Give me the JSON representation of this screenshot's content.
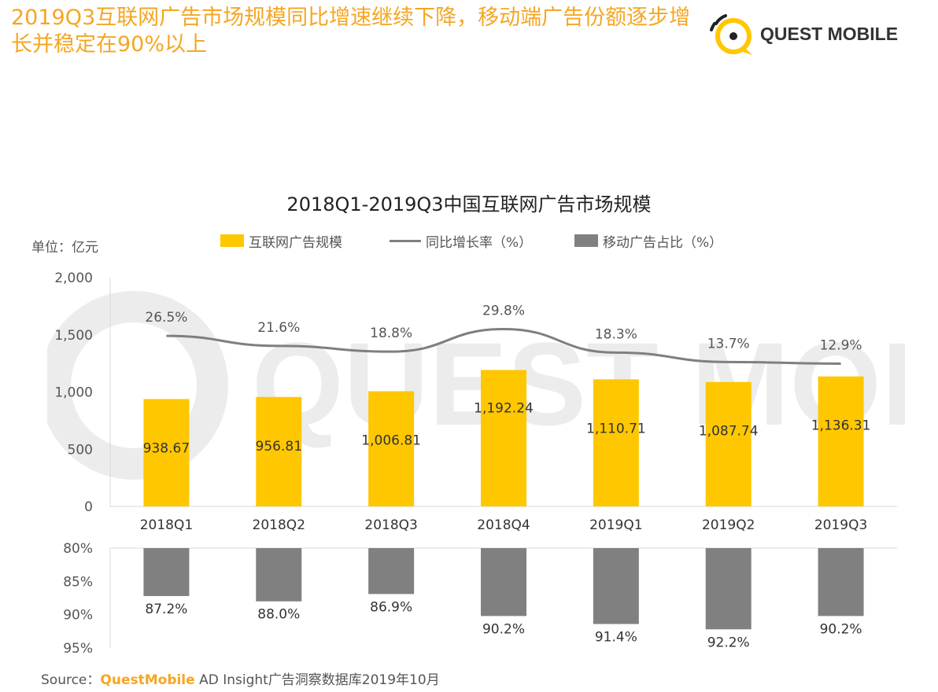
{
  "headline": "2019Q3互联网广告市场规模同比增速继续下降，移动端广告份额逐步增长并稳定在90%以上",
  "logo": {
    "text": "QUEST MOBILE",
    "icon": "quest-mobile-logo-icon"
  },
  "colors": {
    "accent": "#f5a623",
    "bar": "#ffc700",
    "line": "#7f7f7f",
    "mobile_bar": "#808080"
  },
  "source": {
    "prefix": "Source：",
    "brand": "QuestMobile",
    "rest": " AD Insight广告洞察数据库2019年10月"
  },
  "chart_data": {
    "type": "bar",
    "title": "2018Q1-2019Q3中国互联网广告市场规模",
    "unit_label": "单位：亿元",
    "categories": [
      "2018Q1",
      "2018Q2",
      "2018Q3",
      "2018Q4",
      "2019Q1",
      "2019Q2",
      "2019Q3"
    ],
    "legend": [
      "互联网广告规模",
      "同比增长率（%）",
      "移动广告占比（%）"
    ],
    "legend_placement": "top-center",
    "grid": false,
    "top_panel": {
      "ylim": [
        0,
        2000
      ],
      "yticks": [
        "2,000",
        "1,500",
        "1,000",
        "500",
        "0"
      ],
      "ytick_values": [
        2000,
        1500,
        1000,
        500,
        0
      ],
      "series": [
        {
          "name": "互联网广告规模",
          "type": "bar",
          "values": [
            938.67,
            956.81,
            1006.81,
            1192.24,
            1110.71,
            1087.74,
            1136.31
          ],
          "labels": [
            "938.67",
            "956.81",
            "1,006.81",
            "1,192.24",
            "1,110.71",
            "1,087.74",
            "1,136.31"
          ]
        },
        {
          "name": "同比增长率（%）",
          "type": "line",
          "values": [
            26.5,
            21.6,
            18.8,
            29.8,
            18.3,
            13.7,
            12.9
          ],
          "labels": [
            "26.5%",
            "21.6%",
            "18.8%",
            "29.8%",
            "18.3%",
            "13.7%",
            "12.9%"
          ]
        }
      ]
    },
    "bottom_panel": {
      "ylim": [
        80,
        95
      ],
      "yticks": [
        "80%",
        "85%",
        "90%",
        "95%"
      ],
      "ytick_values": [
        80,
        85,
        90,
        95
      ],
      "series": [
        {
          "name": "移动广告占比（%）",
          "type": "bar",
          "values": [
            87.2,
            88.0,
            86.9,
            90.2,
            91.4,
            92.2,
            90.2
          ],
          "labels": [
            "87.2%",
            "88.0%",
            "86.9%",
            "90.2%",
            "91.4%",
            "92.2%",
            "90.2%"
          ]
        }
      ]
    }
  }
}
